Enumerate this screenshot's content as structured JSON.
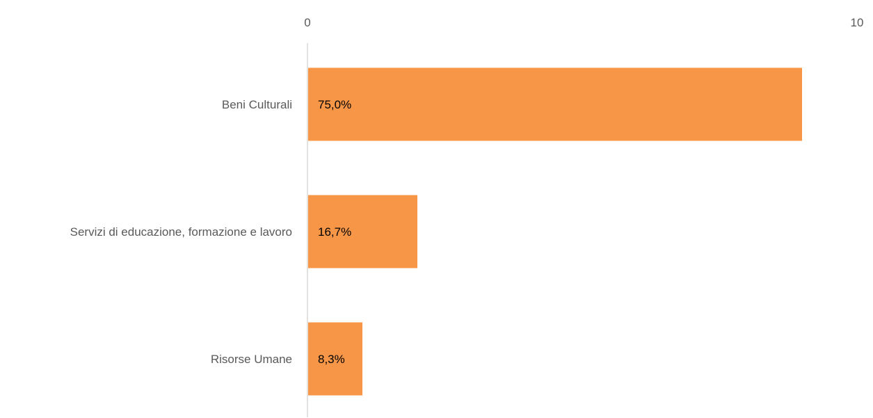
{
  "chart_data": {
    "type": "bar",
    "orientation": "horizontal",
    "categories": [
      "Beni Culturali",
      "Servizi di educazione, formazione e lavoro",
      "Risorse Umane"
    ],
    "values": [
      9,
      2,
      1
    ],
    "data_labels": [
      "75,0%",
      "16,7%",
      "8,3%"
    ],
    "xlim": [
      0,
      10
    ],
    "x_ticks": [
      "0",
      "10"
    ],
    "x_axis_position": "top",
    "grid": false,
    "legend": "none",
    "colors": {
      "bar": "#F79646",
      "axis": "#D9D9D9"
    }
  }
}
